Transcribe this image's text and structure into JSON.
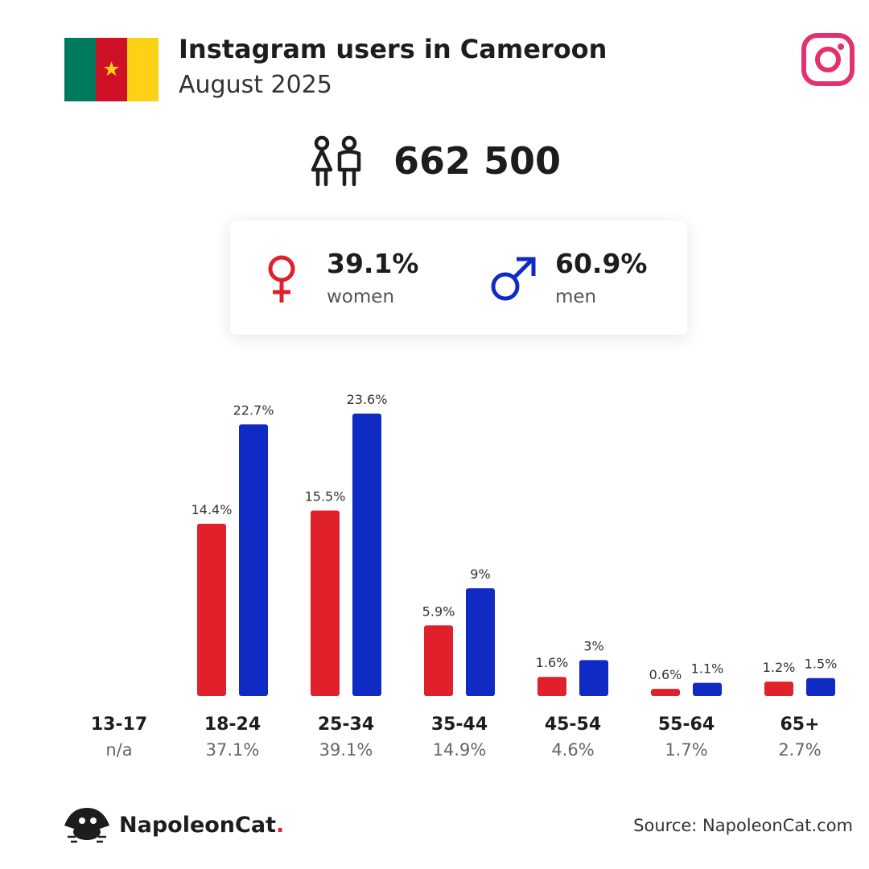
{
  "header": {
    "title": "Instagram users in Cameroon",
    "subtitle": "August 2025"
  },
  "flag": {
    "colors": [
      "#007a5e",
      "#ce1126",
      "#fcd116"
    ],
    "star_color": "#fcd116"
  },
  "total": {
    "value": "662 500",
    "icon": "people-icon"
  },
  "gender": {
    "women": {
      "pct": "39.1%",
      "label": "women",
      "color": "#e0202a",
      "icon": "female-symbol-icon"
    },
    "men": {
      "pct": "60.9%",
      "label": "men",
      "color": "#102ac4",
      "icon": "male-symbol-icon"
    }
  },
  "chart_data": {
    "type": "bar",
    "categories": [
      "13-17",
      "18-24",
      "25-34",
      "35-44",
      "45-54",
      "55-64",
      "65+"
    ],
    "category_totals": [
      "n/a",
      "37.1%",
      "39.1%",
      "14.9%",
      "4.6%",
      "1.7%",
      "2.7%"
    ],
    "series": [
      {
        "values": [
          null,
          14.4,
          15.5,
          5.9,
          1.6,
          0.6,
          1.2
        ],
        "labels": [
          "",
          "14.4%",
          "15.5%",
          "5.9%",
          "1.6%",
          "0.6%",
          "1.2%"
        ],
        "color": "#e0202a"
      },
      {
        "values": [
          null,
          22.7,
          23.6,
          9,
          3,
          1.1,
          1.5
        ],
        "labels": [
          "",
          "22.7%",
          "23.6%",
          "9%",
          "3%",
          "1.1%",
          "1.5%"
        ],
        "color": "#102ac4"
      }
    ],
    "ylim": [
      0,
      23.6
    ],
    "grid": false,
    "legend": "none"
  },
  "footer": {
    "brand": "NapoleonCat",
    "brand_dot": ".",
    "source": "Source: NapoleonCat.com"
  },
  "icons": {
    "instagram": "instagram-icon",
    "logo": "napoleoncat-logo-icon"
  },
  "accent": {
    "instagram": "#e4306c"
  }
}
